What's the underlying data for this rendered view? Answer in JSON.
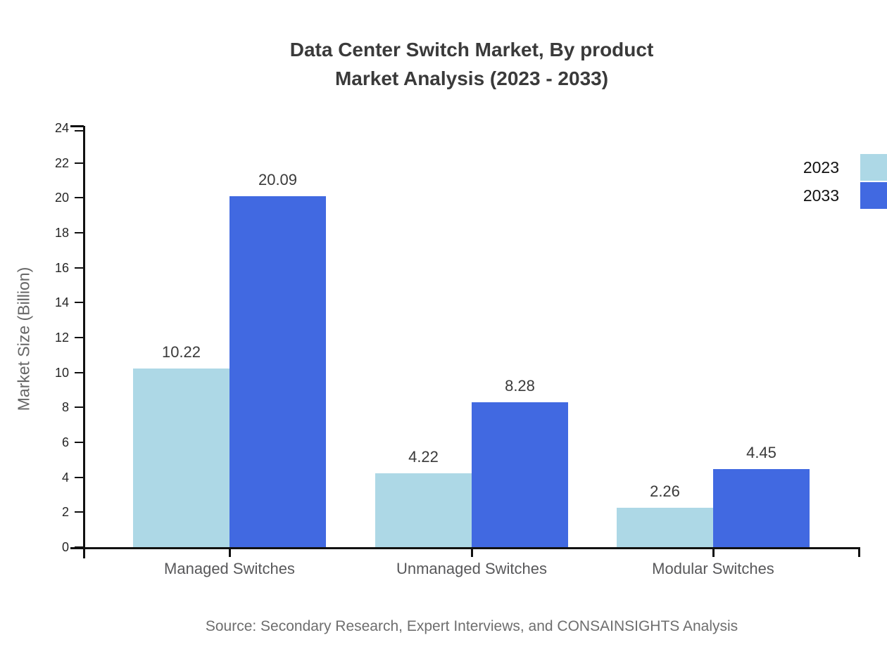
{
  "title": {
    "line1": "Data Center Switch Market, By product",
    "line2": "Market Analysis (2023 - 2033)"
  },
  "chart_data": {
    "type": "bar",
    "title": "Data Center Switch Market, By product Market Analysis (2023 - 2033)",
    "categories": [
      "Managed Switches",
      "Unmanaged Switches",
      "Modular Switches"
    ],
    "series": [
      {
        "name": "2023",
        "color": "#ADD8E6",
        "values": [
          10.22,
          4.22,
          2.26
        ]
      },
      {
        "name": "2033",
        "color": "#4169E1",
        "values": [
          20.09,
          8.28,
          4.45
        ]
      }
    ],
    "value_label_format": "2-decimals",
    "xlabel": "",
    "ylabel": "Market Size (Billion)",
    "ylim": [
      0,
      24
    ],
    "ytick_step": 2,
    "grid": false,
    "legend_position": "top-right"
  },
  "legend": {
    "items": [
      {
        "label": "2023",
        "color": "#ADD8E6"
      },
      {
        "label": "2033",
        "color": "#4169E1"
      }
    ]
  },
  "source": "Source: Secondary Research, Expert Interviews, and CONSAINSIGHTS Analysis"
}
